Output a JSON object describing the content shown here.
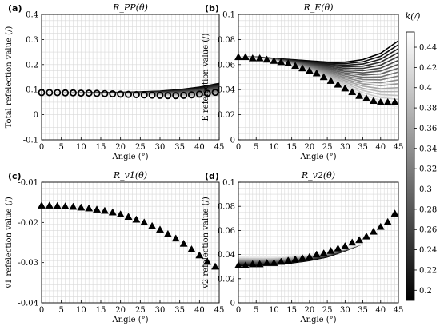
{
  "figure": {
    "colorbar": {
      "label": "k(/)",
      "ticks": [
        "0.44",
        "0.42",
        "0.4",
        "0.38",
        "0.36",
        "0.34",
        "0.32",
        "0.3",
        "0.28",
        "0.26",
        "0.24",
        "0.22",
        "0.2"
      ],
      "range": [
        0.19,
        0.455
      ]
    }
  },
  "chart_data": [
    {
      "panel": "(a)",
      "type": "line",
      "title": "R_PP(θ)",
      "xlabel": "Angle (°)",
      "ylabel": "Total refelection value (/)",
      "xlim": [
        0,
        45
      ],
      "ylim": [
        -0.1,
        0.4
      ],
      "xticks": [
        "0",
        "5",
        "10",
        "15",
        "20",
        "25",
        "30",
        "35",
        "40",
        "45"
      ],
      "yticks": [
        "-0.1",
        "0",
        "0.1",
        "0.2",
        "0.3",
        "0.4"
      ],
      "grid": true,
      "marker": "circle",
      "x": [
        0,
        2,
        4,
        6,
        8,
        10,
        12,
        14,
        16,
        18,
        20,
        22,
        24,
        26,
        28,
        30,
        32,
        34,
        36,
        38,
        40,
        42,
        44
      ],
      "curve_family": {
        "parameter": "k",
        "k_values": [
          0.2,
          0.44
        ],
        "x": [
          0,
          5,
          10,
          15,
          20,
          25,
          30,
          35,
          40,
          45
        ],
        "y_k_min": [
          0.088,
          0.087,
          0.086,
          0.084,
          0.081,
          0.078,
          0.074,
          0.07,
          0.068,
          0.072
        ],
        "y_k_max": [
          0.088,
          0.088,
          0.088,
          0.088,
          0.089,
          0.091,
          0.094,
          0.1,
          0.11,
          0.125
        ]
      },
      "series": [
        {
          "values": [
            0.088,
            0.088,
            0.088,
            0.087,
            0.087,
            0.086,
            0.086,
            0.085,
            0.084,
            0.083,
            0.082,
            0.081,
            0.08,
            0.079,
            0.078,
            0.077,
            0.076,
            0.076,
            0.077,
            0.079,
            0.082,
            0.085,
            0.089
          ]
        }
      ]
    },
    {
      "panel": "(b)",
      "type": "line",
      "title": "R_E(θ)",
      "xlabel": "Angle (°)",
      "ylabel": "E refelection value (/)",
      "xlim": [
        0,
        45
      ],
      "ylim": [
        0,
        0.1
      ],
      "xticks": [
        "0",
        "5",
        "10",
        "15",
        "20",
        "25",
        "30",
        "35",
        "40",
        "45"
      ],
      "yticks": [
        "0",
        "0.02",
        "0.04",
        "0.06",
        "0.08",
        "0.1"
      ],
      "grid": true,
      "marker": "triangle",
      "x": [
        0,
        2,
        4,
        6,
        8,
        10,
        12,
        14,
        16,
        18,
        20,
        22,
        24,
        26,
        28,
        30,
        32,
        34,
        36,
        38,
        40,
        42,
        44
      ],
      "curve_family": {
        "parameter": "k",
        "k_values": [
          0.2,
          0.44
        ],
        "x": [
          0,
          5,
          10,
          15,
          20,
          25,
          30,
          35,
          40,
          45
        ],
        "y_k_min": [
          0.066,
          0.065,
          0.063,
          0.059,
          0.054,
          0.048,
          0.041,
          0.034,
          0.029,
          0.026
        ],
        "y_k_max": [
          0.066,
          0.066,
          0.065,
          0.064,
          0.063,
          0.062,
          0.062,
          0.064,
          0.069,
          0.079
        ]
      },
      "series": [
        {
          "values": [
            0.066,
            0.066,
            0.065,
            0.065,
            0.064,
            0.063,
            0.062,
            0.061,
            0.059,
            0.057,
            0.055,
            0.053,
            0.05,
            0.047,
            0.044,
            0.041,
            0.038,
            0.035,
            0.033,
            0.031,
            0.03,
            0.03,
            0.03
          ]
        }
      ]
    },
    {
      "panel": "(c)",
      "type": "line",
      "title": "R_v1(θ)",
      "xlabel": "Angle (°)",
      "ylabel": "v1 refelection value (/)",
      "xlim": [
        0,
        45
      ],
      "ylim": [
        -0.04,
        -0.01
      ],
      "xticks": [
        "0",
        "5",
        "10",
        "15",
        "20",
        "25",
        "30",
        "35",
        "40",
        "45"
      ],
      "yticks": [
        "-0.04",
        "-0.03",
        "-0.02",
        "-0.01"
      ],
      "grid": true,
      "marker": "triangle",
      "x": [
        0,
        2,
        4,
        6,
        8,
        10,
        12,
        14,
        16,
        18,
        20,
        22,
        24,
        26,
        28,
        30,
        32,
        34,
        36,
        38,
        40,
        42,
        44
      ],
      "series": [
        {
          "values": [
            -0.0158,
            -0.0158,
            -0.0159,
            -0.016,
            -0.0161,
            -0.0163,
            -0.0165,
            -0.0168,
            -0.0171,
            -0.0175,
            -0.018,
            -0.0186,
            -0.0193,
            -0.02,
            -0.0209,
            -0.0218,
            -0.0229,
            -0.024,
            -0.0253,
            -0.0267,
            -0.0282,
            -0.0298,
            -0.031
          ]
        }
      ]
    },
    {
      "panel": "(d)",
      "type": "line",
      "title": "R_v2(θ)",
      "xlabel": "Angle (°)",
      "ylabel": "v2 refelection value (/)",
      "xlim": [
        0,
        45
      ],
      "ylim": [
        0,
        0.1
      ],
      "xticks": [
        "0",
        "5",
        "10",
        "15",
        "20",
        "25",
        "30",
        "35",
        "40",
        "45"
      ],
      "yticks": [
        "0",
        "0.02",
        "0.04",
        "0.06",
        "0.08",
        "0.1"
      ],
      "grid": true,
      "marker": "triangle",
      "x": [
        0,
        2,
        4,
        6,
        8,
        10,
        12,
        14,
        16,
        18,
        20,
        22,
        24,
        26,
        28,
        30,
        32,
        34,
        36,
        38,
        40,
        42,
        44
      ],
      "curve_family": {
        "parameter": "k",
        "k_values": [
          0.2,
          0.44
        ],
        "x": [
          0,
          5,
          10,
          15,
          20,
          25,
          30,
          35
        ],
        "y_k_min": [
          0.038,
          0.038,
          0.038,
          0.039,
          0.04,
          0.042,
          0.045,
          0.049
        ],
        "y_k_max": [
          0.031,
          0.031,
          0.032,
          0.033,
          0.035,
          0.038,
          0.043,
          0.049
        ]
      },
      "series": [
        {
          "values": [
            0.031,
            0.031,
            0.032,
            0.032,
            0.033,
            0.033,
            0.034,
            0.035,
            0.036,
            0.037,
            0.038,
            0.04,
            0.041,
            0.043,
            0.045,
            0.047,
            0.05,
            0.052,
            0.055,
            0.059,
            0.063,
            0.067,
            0.074
          ]
        }
      ]
    }
  ]
}
